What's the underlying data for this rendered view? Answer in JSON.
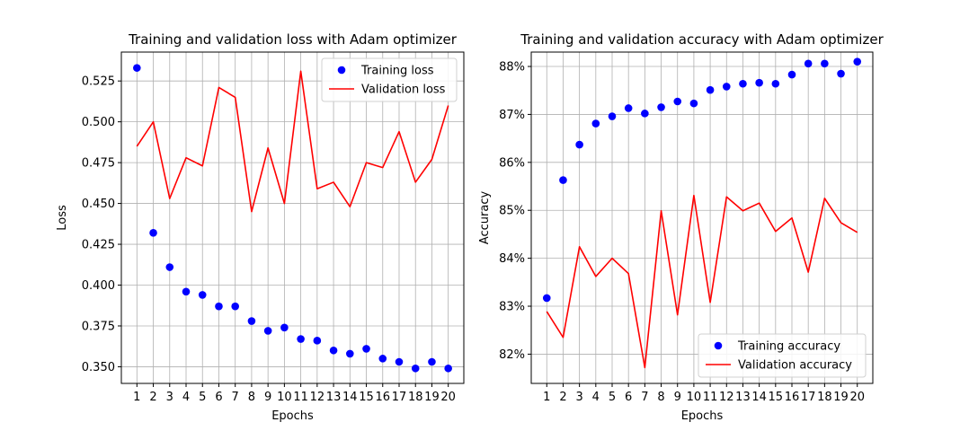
{
  "chart_data": [
    {
      "type": "scatter+line",
      "title": "Training and validation loss with Adam optimizer",
      "xlabel": "Epochs",
      "ylabel": "Loss",
      "x": [
        1,
        2,
        3,
        4,
        5,
        6,
        7,
        8,
        9,
        10,
        11,
        12,
        13,
        14,
        15,
        16,
        17,
        18,
        19,
        20
      ],
      "xticks": [
        "1",
        "2",
        "3",
        "4",
        "5",
        "6",
        "7",
        "8",
        "9",
        "10",
        "11",
        "12",
        "13",
        "14",
        "15",
        "16",
        "17",
        "18",
        "19",
        "20"
      ],
      "xlim": [
        0.05,
        20.95
      ],
      "ylim": [
        0.3398,
        0.5427
      ],
      "yticks": [
        0.35,
        0.375,
        0.4,
        0.425,
        0.45,
        0.475,
        0.5,
        0.525
      ],
      "ytick_labels": [
        "0.350",
        "0.375",
        "0.400",
        "0.425",
        "0.450",
        "0.475",
        "0.500",
        "0.525"
      ],
      "grid": true,
      "legend_position": "top-right",
      "series": [
        {
          "name": "Training loss",
          "style": "markers",
          "color": "#0000ff",
          "values": [
            0.533,
            0.432,
            0.411,
            0.396,
            0.394,
            0.387,
            0.387,
            0.378,
            0.372,
            0.374,
            0.367,
            0.366,
            0.36,
            0.358,
            0.361,
            0.355,
            0.353,
            0.349,
            0.353,
            0.349
          ]
        },
        {
          "name": "Validation loss",
          "style": "line",
          "color": "#ff0000",
          "values": [
            0.485,
            0.5,
            0.453,
            0.478,
            0.473,
            0.521,
            0.515,
            0.445,
            0.484,
            0.45,
            0.531,
            0.459,
            0.463,
            0.448,
            0.475,
            0.472,
            0.494,
            0.463,
            0.477,
            0.51
          ]
        }
      ]
    },
    {
      "type": "scatter+line",
      "title": "Training and validation accuracy with Adam optimizer",
      "xlabel": "Epochs",
      "ylabel": "Accuracy",
      "x": [
        1,
        2,
        3,
        4,
        5,
        6,
        7,
        8,
        9,
        10,
        11,
        12,
        13,
        14,
        15,
        16,
        17,
        18,
        19,
        20
      ],
      "xticks": [
        "1",
        "2",
        "3",
        "4",
        "5",
        "6",
        "7",
        "8",
        "9",
        "10",
        "11",
        "12",
        "13",
        "14",
        "15",
        "16",
        "17",
        "18",
        "19",
        "20"
      ],
      "xlim": [
        0.05,
        20.95
      ],
      "ylim": [
        81.39,
        88.3
      ],
      "yticks": [
        82,
        83,
        84,
        85,
        86,
        87,
        88
      ],
      "ytick_labels": [
        "82%",
        "83%",
        "84%",
        "85%",
        "86%",
        "87%",
        "88%"
      ],
      "grid": true,
      "legend_position": "bottom-right",
      "series": [
        {
          "name": "Training accuracy",
          "style": "markers",
          "color": "#0000ff",
          "values": [
            83.17,
            85.63,
            86.37,
            86.81,
            86.96,
            87.13,
            87.02,
            87.15,
            87.27,
            87.23,
            87.51,
            87.58,
            87.64,
            87.66,
            87.64,
            87.83,
            88.06,
            88.06,
            87.85,
            88.1
          ]
        },
        {
          "name": "Validation accuracy",
          "style": "line",
          "color": "#ff0000",
          "values": [
            82.89,
            82.35,
            84.24,
            83.62,
            84.0,
            83.68,
            81.72,
            84.99,
            82.82,
            85.31,
            83.08,
            85.28,
            84.99,
            85.15,
            84.56,
            84.84,
            83.71,
            85.25,
            84.74,
            84.54
          ]
        }
      ]
    }
  ]
}
